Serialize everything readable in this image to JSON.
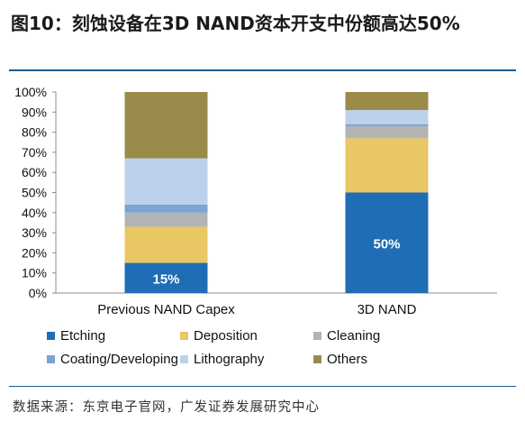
{
  "title": "图10：刻蚀设备在3D NAND资本开支中份额高达50%",
  "source": "数据来源：东京电子官网，广发证券发展研究中心",
  "chart_data": {
    "type": "bar",
    "stacked": true,
    "categories": [
      "Previous NAND Capex",
      "3D NAND"
    ],
    "series": [
      {
        "name": "Etching",
        "color": "#1f6db5",
        "values": [
          15,
          50
        ]
      },
      {
        "name": "Deposition",
        "color": "#e8c764",
        "values": [
          18,
          27
        ]
      },
      {
        "name": "Cleaning",
        "color": "#b3b3b3",
        "values": [
          7,
          6
        ]
      },
      {
        "name": "Coating/Developing",
        "color": "#7ba3d4",
        "values": [
          4,
          1
        ]
      },
      {
        "name": "Lithography",
        "color": "#bcd2ea",
        "values": [
          23,
          7
        ]
      },
      {
        "name": "Others",
        "color": "#9a8b4a",
        "values": [
          33,
          9
        ]
      }
    ],
    "data_labels": [
      "15%",
      "50%"
    ],
    "yticks": [
      "0%",
      "10%",
      "20%",
      "30%",
      "40%",
      "50%",
      "60%",
      "70%",
      "80%",
      "90%",
      "100%"
    ],
    "ylim": [
      0,
      100
    ],
    "legend_position": "bottom"
  }
}
